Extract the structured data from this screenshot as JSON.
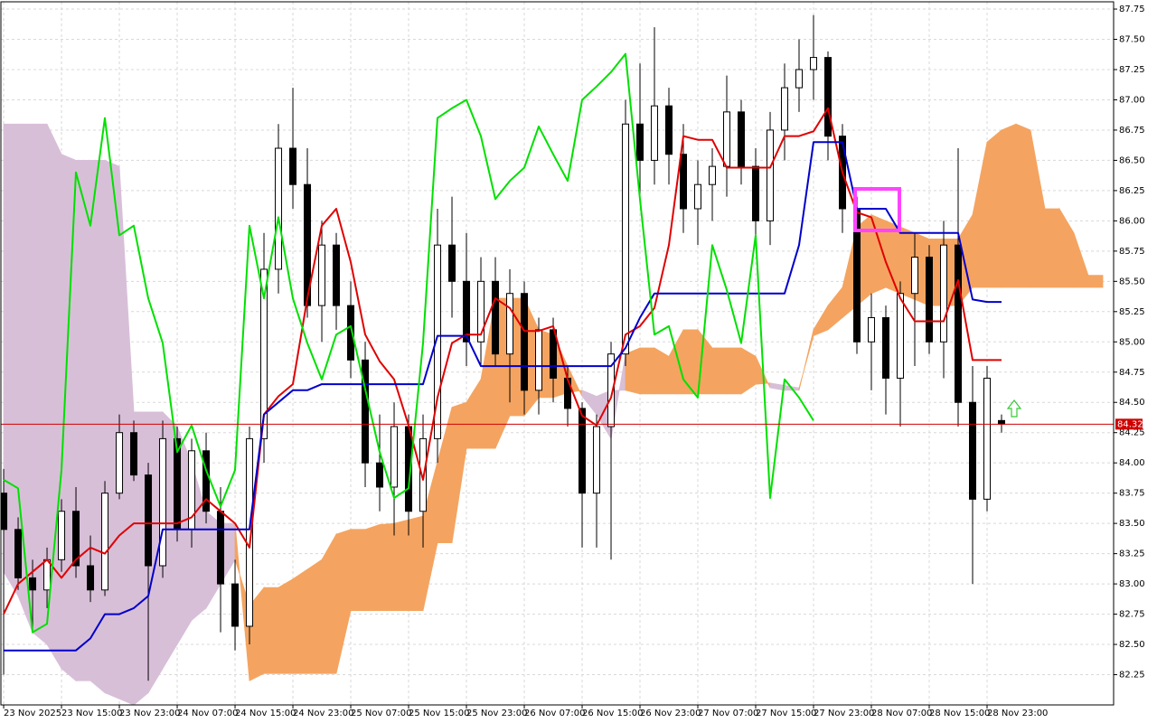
{
  "chart_data": {
    "type": "candlestick",
    "xlim": [
      -0.19,
      76.75
    ],
    "ylim": [
      82.0,
      87.81
    ],
    "grid": true,
    "xticks": [
      {
        "value": 0,
        "label": "23 Nov 2025"
      },
      {
        "value": 4,
        "label": "23 Nov 15:00"
      },
      {
        "value": 8,
        "label": "23 Nov 23:00"
      },
      {
        "value": 12,
        "label": "24 Nov 07:00"
      },
      {
        "value": 16,
        "label": "24 Nov 15:00"
      },
      {
        "value": 20,
        "label": "24 Nov 23:00"
      },
      {
        "value": 24,
        "label": "25 Nov 07:00"
      },
      {
        "value": 28,
        "label": "25 Nov 15:00"
      },
      {
        "value": 32,
        "label": "25 Nov 23:00"
      },
      {
        "value": 36,
        "label": "26 Nov 07:00"
      },
      {
        "value": 40,
        "label": "26 Nov 15:00"
      },
      {
        "value": 44,
        "label": "26 Nov 23:00"
      },
      {
        "value": 48,
        "label": "27 Nov 07:00"
      },
      {
        "value": 52,
        "label": "27 Nov 15:00"
      },
      {
        "value": 56,
        "label": "27 Nov 23:00"
      },
      {
        "value": 60,
        "label": "28 Nov 07:00"
      },
      {
        "value": 64,
        "label": "28 Nov 15:00"
      },
      {
        "value": 68,
        "label": "28 Nov 23:00"
      }
    ],
    "yticks": [
      82.25,
      {
        "value": 82.5,
        "label": "82.50"
      },
      82.75,
      {
        "value": 83,
        "label": "83.00"
      },
      83.25,
      {
        "value": 83.5,
        "label": "83.50"
      },
      83.75,
      {
        "value": 84,
        "label": "84.00"
      },
      84.25,
      {
        "value": 84.5,
        "label": "84.50"
      },
      84.75,
      {
        "value": 85,
        "label": "85.00"
      },
      85.25,
      {
        "value": 85.5,
        "label": "85.50"
      },
      85.75,
      {
        "value": 86,
        "label": "86.00"
      },
      86.25,
      {
        "value": 86.5,
        "label": "86.50"
      },
      86.75,
      {
        "value": 87,
        "label": "87.00"
      },
      87.25,
      {
        "value": 87.5,
        "label": "87.50"
      },
      87.75
    ],
    "bull_color": "#ffffff",
    "bear_color": "#000000",
    "ohlc": [
      [
        83.75,
        83.95,
        82.25,
        83.45
      ],
      [
        83.45,
        83.55,
        82.95,
        83.05
      ],
      [
        83.05,
        83.2,
        82.6,
        82.95
      ],
      [
        82.95,
        83.3,
        82.8,
        83.2
      ],
      [
        83.2,
        83.7,
        83.1,
        83.6
      ],
      [
        83.6,
        83.8,
        83.05,
        83.15
      ],
      [
        83.15,
        83.4,
        82.85,
        82.95
      ],
      [
        82.95,
        83.85,
        82.9,
        83.75
      ],
      [
        83.75,
        84.4,
        83.7,
        84.25
      ],
      [
        84.25,
        84.35,
        83.85,
        83.9
      ],
      [
        83.9,
        84.0,
        82.2,
        83.15
      ],
      [
        83.15,
        84.35,
        83.05,
        84.2
      ],
      [
        84.2,
        84.3,
        83.35,
        83.45
      ],
      [
        83.45,
        84.2,
        83.3,
        84.1
      ],
      [
        84.1,
        84.25,
        83.5,
        83.6
      ],
      [
        83.6,
        83.8,
        82.6,
        83.0
      ],
      [
        83.0,
        83.2,
        82.45,
        82.65
      ],
      [
        82.65,
        84.3,
        82.5,
        84.2
      ],
      [
        84.2,
        85.9,
        84.0,
        85.6
      ],
      [
        85.6,
        86.8,
        85.4,
        86.6
      ],
      [
        86.6,
        87.1,
        86.1,
        86.3
      ],
      [
        86.3,
        86.6,
        85.2,
        85.3
      ],
      [
        85.3,
        86.0,
        85.0,
        85.8
      ],
      [
        85.8,
        85.9,
        85.1,
        85.3
      ],
      [
        85.3,
        85.5,
        84.7,
        84.85
      ],
      [
        84.85,
        85.0,
        83.8,
        84.0
      ],
      [
        84.0,
        84.4,
        83.6,
        83.8
      ],
      [
        83.8,
        84.5,
        83.4,
        84.3
      ],
      [
        84.3,
        84.4,
        83.4,
        83.6
      ],
      [
        83.6,
        84.4,
        83.3,
        84.2
      ],
      [
        84.2,
        86.1,
        84.0,
        85.8
      ],
      [
        85.8,
        86.2,
        85.2,
        85.5
      ],
      [
        85.5,
        85.9,
        84.8,
        85.0
      ],
      [
        85.0,
        85.7,
        84.8,
        85.5
      ],
      [
        85.5,
        85.7,
        84.8,
        84.9
      ],
      [
        84.9,
        85.6,
        84.5,
        85.4
      ],
      [
        85.4,
        85.5,
        84.4,
        84.6
      ],
      [
        84.6,
        85.2,
        84.4,
        85.1
      ],
      [
        85.1,
        85.2,
        84.5,
        84.7
      ],
      [
        84.7,
        84.8,
        84.3,
        84.45
      ],
      [
        84.45,
        84.5,
        83.3,
        83.75
      ],
      [
        83.75,
        84.4,
        83.3,
        84.3
      ],
      [
        84.3,
        85.0,
        83.2,
        84.9
      ],
      [
        84.9,
        87.0,
        84.8,
        86.8
      ],
      [
        86.8,
        87.3,
        86.2,
        86.5
      ],
      [
        86.5,
        87.6,
        86.3,
        86.95
      ],
      [
        86.95,
        87.1,
        86.3,
        86.55
      ],
      [
        86.55,
        86.8,
        85.9,
        86.1
      ],
      [
        86.1,
        86.5,
        85.8,
        86.3
      ],
      [
        86.3,
        86.6,
        86.0,
        86.45
      ],
      [
        86.45,
        87.2,
        86.2,
        86.9
      ],
      [
        86.9,
        87.0,
        86.3,
        86.45
      ],
      [
        86.45,
        86.6,
        85.8,
        86.0
      ],
      [
        86.0,
        86.9,
        85.8,
        86.75
      ],
      [
        86.75,
        87.3,
        86.5,
        87.1
      ],
      [
        87.1,
        87.5,
        86.9,
        87.25
      ],
      [
        87.25,
        87.7,
        87.0,
        87.35
      ],
      [
        87.35,
        87.4,
        86.5,
        86.7
      ],
      [
        86.7,
        86.8,
        85.9,
        86.1
      ],
      [
        86.1,
        86.2,
        84.9,
        85.0
      ],
      [
        85.0,
        85.4,
        84.6,
        85.2
      ],
      [
        85.2,
        85.3,
        84.4,
        84.7
      ],
      [
        84.7,
        85.5,
        84.3,
        85.4
      ],
      [
        85.4,
        85.9,
        84.8,
        85.7
      ],
      [
        85.7,
        85.8,
        84.9,
        85.0
      ],
      [
        85.0,
        86.0,
        84.7,
        85.8
      ],
      [
        85.8,
        86.6,
        84.3,
        84.5
      ],
      [
        84.5,
        84.8,
        83.0,
        83.7
      ],
      [
        83.7,
        84.8,
        83.6,
        84.7
      ],
      [
        84.35,
        84.4,
        84.25,
        84.32
      ]
    ],
    "cloud": {
      "bull_color": "#f4a460",
      "bear_color": "#d8bfd8",
      "span_a": [
        83.1,
        82.9,
        82.6,
        82.5,
        82.3,
        82.2,
        82.2,
        82.1,
        82.05,
        82.0,
        82.1,
        82.3,
        82.5,
        82.7,
        82.8,
        83.0,
        83.2,
        82.82,
        82.97,
        82.97,
        83.04,
        83.12,
        83.2,
        83.41,
        83.45,
        83.45,
        83.49,
        83.5,
        83.53,
        83.56,
        84.01,
        84.46,
        84.5,
        84.69,
        85.36,
        85.36,
        85.36,
        85.1,
        85.06,
        84.8,
        84.55,
        84.4,
        84.2,
        84.9,
        84.95,
        84.95,
        84.88,
        85.1,
        85.1,
        84.95,
        84.95,
        84.95,
        84.88,
        84.62,
        84.6,
        84.6,
        85.1,
        85.3,
        85.45,
        85.95,
        86.05,
        86.0,
        85.95,
        85.9,
        85.85,
        85.85,
        85.85,
        86.05,
        86.65,
        86.75,
        86.8,
        86.75,
        86.1,
        86.1,
        85.9,
        85.55,
        85.55
      ],
      "span_b": [
        86.8,
        86.8,
        86.8,
        86.8,
        86.55,
        86.5,
        86.5,
        86.5,
        86.45,
        84.42,
        84.42,
        84.42,
        84.3,
        84.0,
        83.6,
        83.5,
        83.5,
        82.2,
        82.26,
        82.26,
        82.26,
        82.26,
        82.26,
        82.26,
        82.78,
        82.78,
        82.78,
        82.78,
        82.78,
        82.78,
        83.34,
        83.34,
        84.12,
        84.12,
        84.12,
        84.39,
        84.39,
        84.54,
        84.54,
        84.58,
        84.6,
        84.55,
        84.6,
        84.6,
        84.57,
        84.57,
        84.57,
        84.57,
        84.57,
        84.57,
        84.57,
        84.57,
        84.65,
        84.66,
        84.64,
        84.62,
        85.05,
        85.1,
        85.2,
        85.3,
        85.4,
        85.45,
        85.4,
        85.35,
        85.3,
        85.3,
        85.3,
        85.45,
        85.45,
        85.45,
        85.45,
        85.45,
        85.45,
        85.45,
        85.45,
        85.45,
        85.45
      ]
    },
    "lines": [
      {
        "color": "#e00000",
        "values": [
          82.75,
          83.0,
          83.1,
          83.2,
          83.05,
          83.2,
          83.3,
          83.25,
          83.4,
          83.5,
          83.5,
          83.5,
          83.5,
          83.55,
          83.7,
          83.6,
          83.5,
          83.3,
          84.4,
          84.55,
          84.65,
          85.36,
          85.96,
          86.1,
          85.66,
          85.06,
          84.84,
          84.69,
          84.31,
          83.86,
          84.54,
          84.99,
          85.06,
          85.06,
          85.36,
          85.28,
          85.09,
          85.09,
          85.13,
          84.69,
          84.39,
          84.31,
          84.54,
          85.06,
          85.13,
          85.28,
          85.8,
          86.7,
          86.67,
          86.67,
          86.44,
          86.44,
          86.44,
          86.44,
          86.7,
          86.7,
          86.74,
          86.93,
          86.4,
          86.07,
          86.03,
          85.66,
          85.36,
          85.17,
          85.17,
          85.17,
          85.51,
          84.85,
          84.85,
          84.85,
          null,
          null,
          null,
          null,
          null,
          null,
          null
        ]
      },
      {
        "color": "#0000cc",
        "values": [
          82.45,
          82.45,
          82.45,
          82.45,
          82.45,
          82.45,
          82.55,
          82.75,
          82.75,
          82.8,
          82.9,
          83.45,
          83.45,
          83.45,
          83.45,
          83.45,
          83.45,
          83.45,
          84.4,
          84.5,
          84.6,
          84.6,
          84.65,
          84.65,
          84.65,
          84.65,
          84.65,
          84.65,
          84.65,
          84.65,
          85.05,
          85.05,
          85.05,
          84.8,
          84.8,
          84.8,
          84.8,
          84.8,
          84.8,
          84.8,
          84.8,
          84.8,
          84.8,
          84.95,
          85.2,
          85.4,
          85.4,
          85.4,
          85.4,
          85.4,
          85.4,
          85.4,
          85.4,
          85.4,
          85.4,
          85.8,
          86.65,
          86.65,
          86.65,
          86.1,
          86.1,
          86.1,
          85.9,
          85.9,
          85.9,
          85.9,
          85.9,
          85.35,
          85.33,
          85.33,
          null,
          null,
          null,
          null,
          null,
          null,
          null
        ]
      },
      {
        "color": "#00e000",
        "values": [
          83.86,
          83.79,
          82.6,
          82.67,
          83.94,
          86.4,
          85.96,
          86.85,
          85.88,
          85.96,
          85.36,
          84.99,
          84.09,
          84.31,
          83.94,
          83.64,
          83.94,
          85.96,
          85.36,
          86.03,
          85.36,
          84.99,
          84.69,
          85.06,
          85.13,
          84.61,
          84.09,
          83.71,
          83.79,
          84.99,
          86.85,
          86.93,
          87.0,
          86.7,
          86.18,
          86.33,
          86.44,
          86.78,
          86.55,
          86.33,
          87.0,
          87.11,
          87.23,
          87.38,
          86.18,
          85.06,
          85.13,
          84.69,
          84.54,
          85.8,
          85.43,
          84.99,
          85.88,
          83.71,
          84.69,
          84.54,
          84.35,
          null,
          null,
          null,
          null,
          null,
          null,
          null,
          null,
          null,
          null,
          null,
          null,
          null,
          null,
          null,
          null,
          null,
          null,
          null,
          null
        ]
      }
    ],
    "last_price": 84.32,
    "last_price_color": "#d00000"
  }
}
